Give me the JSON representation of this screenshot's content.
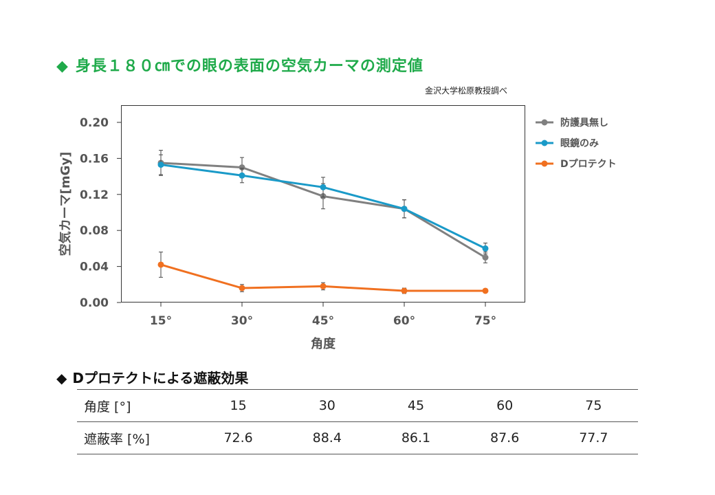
{
  "page": {
    "title": "身長１８０㎝での眼の表面の空気カーマの測定値",
    "diamond": "◆",
    "source_note": "金沢大学松原教授調べ"
  },
  "chart_data": {
    "type": "line",
    "categories": [
      "15°",
      "30°",
      "45°",
      "60°",
      "75°"
    ],
    "xlabel": "角度",
    "ylabel": "空気カーマ[mGy]",
    "ylim": [
      0,
      0.2
    ],
    "yticks": [
      "0.00",
      "0.04",
      "0.08",
      "0.12",
      "0.16",
      "0.20"
    ],
    "grid": false,
    "legend_position": "right",
    "series": [
      {
        "name": "防護具無し",
        "color": "#808080",
        "values": [
          0.155,
          0.15,
          0.118,
          0.104,
          0.05
        ],
        "errors": [
          0.014,
          0.011,
          0.014,
          0.01,
          0.006
        ]
      },
      {
        "name": "眼鏡のみ",
        "color": "#1a9ac8",
        "values": [
          0.153,
          0.141,
          0.128,
          0.104,
          0.06
        ],
        "errors": [
          0.011,
          0.008,
          0.011,
          0.01,
          0.006
        ]
      },
      {
        "name": "Dプロテクト",
        "color": "#f07020",
        "values": [
          0.042,
          0.016,
          0.018,
          0.013,
          0.013
        ],
        "errors": [
          0.014,
          0.004,
          0.004,
          0.003,
          0.002
        ]
      }
    ]
  },
  "shield_table": {
    "heading": "Dプロテクトによる遮蔽効果",
    "angle_label": "角度 [°]",
    "angles": [
      "15",
      "30",
      "45",
      "60",
      "75"
    ],
    "rate_label": "遮蔽率 [%]",
    "rates": [
      "72.6",
      "88.4",
      "86.1",
      "87.6",
      "77.7"
    ]
  }
}
